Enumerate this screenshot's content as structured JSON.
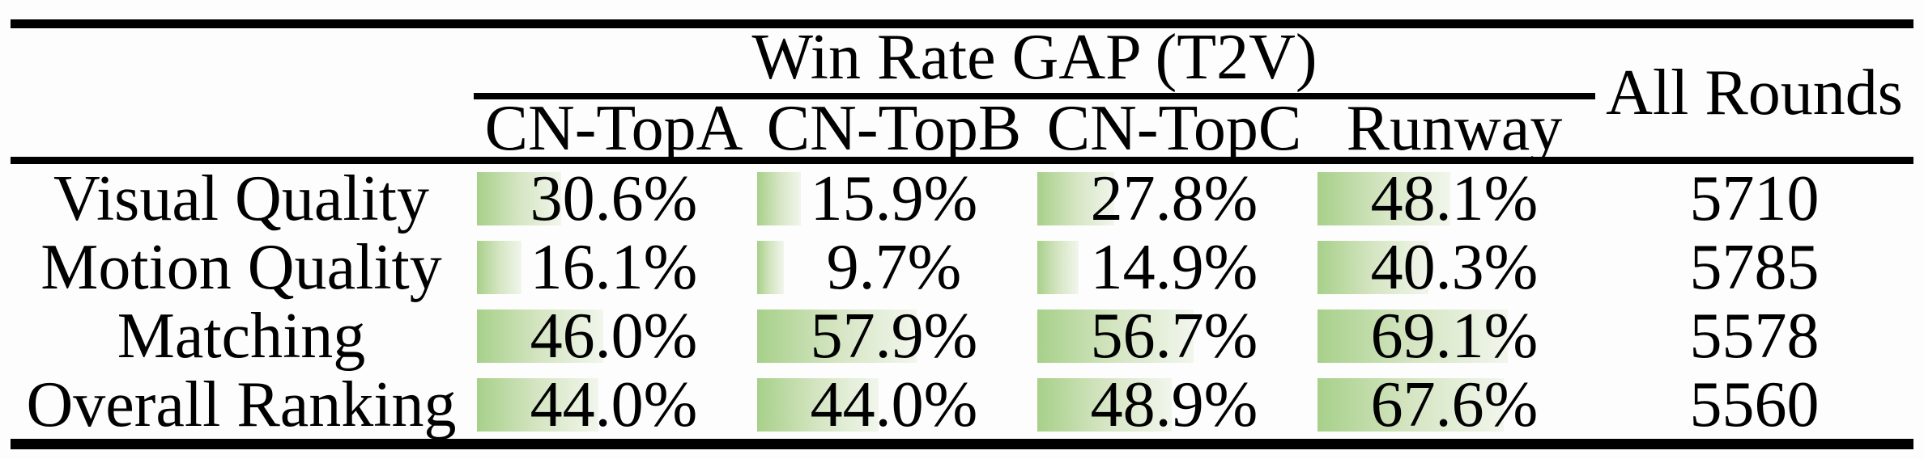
{
  "table": {
    "header": {
      "group_title": "Win Rate GAP (T2V)",
      "all_rounds_label": "All Rounds",
      "columns": [
        "CN-TopA",
        "CN-TopB",
        "CN-TopC",
        "Runway"
      ]
    },
    "rows": [
      {
        "label": "Visual Quality",
        "values": [
          "30.6%",
          "15.9%",
          "27.8%",
          "48.1%"
        ],
        "pcts": [
          30.6,
          15.9,
          27.8,
          48.1
        ],
        "all_rounds": "5710"
      },
      {
        "label": "Motion Quality",
        "values": [
          "16.1%",
          "9.7%",
          "14.9%",
          "40.3%"
        ],
        "pcts": [
          16.1,
          9.7,
          14.9,
          40.3
        ],
        "all_rounds": "5785"
      },
      {
        "label": "Matching",
        "values": [
          "46.0%",
          "57.9%",
          "56.7%",
          "69.1%"
        ],
        "pcts": [
          46.0,
          57.9,
          56.7,
          69.1
        ],
        "all_rounds": "5578"
      },
      {
        "label": "Overall Ranking",
        "values": [
          "44.0%",
          "44.0%",
          "48.9%",
          "67.6%"
        ],
        "pcts": [
          44.0,
          44.0,
          48.9,
          67.6
        ],
        "all_rounds": "5560"
      }
    ],
    "colors": {
      "bar_gradient_start": "#a7d08a",
      "bar_gradient_mid": "#d5e5c2",
      "bar_gradient_end": "#f1f6ec",
      "rule_color": "#000000",
      "text_color": "#000000"
    }
  },
  "chart_data": {
    "type": "table",
    "title": "Win Rate GAP (T2V)",
    "columns": [
      "CN-TopA",
      "CN-TopB",
      "CN-TopC",
      "Runway",
      "All Rounds"
    ],
    "rows": [
      {
        "label": "Visual Quality",
        "win_rate_gap_pct": {
          "CN-TopA": 30.6,
          "CN-TopB": 15.9,
          "CN-TopC": 27.8,
          "Runway": 48.1
        },
        "all_rounds": 5710
      },
      {
        "label": "Motion Quality",
        "win_rate_gap_pct": {
          "CN-TopA": 16.1,
          "CN-TopB": 9.7,
          "CN-TopC": 14.9,
          "Runway": 40.3
        },
        "all_rounds": 5785
      },
      {
        "label": "Matching",
        "win_rate_gap_pct": {
          "CN-TopA": 46.0,
          "CN-TopB": 57.9,
          "CN-TopC": 56.7,
          "Runway": 69.1
        },
        "all_rounds": 5578
      },
      {
        "label": "Overall Ranking",
        "win_rate_gap_pct": {
          "CN-TopA": 44.0,
          "CN-TopB": 44.0,
          "CN-TopC": 48.9,
          "Runway": 67.6
        },
        "all_rounds": 5560
      }
    ],
    "bars": {
      "style": "horizontal-fill",
      "scale": "width proportional to percent",
      "gradient": [
        "#a7d08a",
        "#f1f6ec"
      ]
    }
  }
}
